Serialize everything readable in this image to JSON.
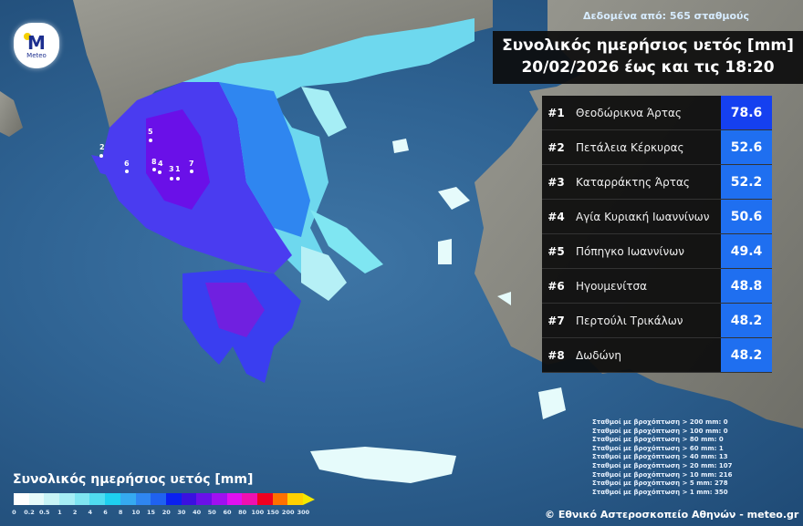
{
  "header": {
    "source_note": "Δεδομένα από: 565 σταθμούς",
    "title_line1": "Συνολικός ημερήσιος υετός [mm]",
    "title_line2": "20/02/2026 έως και τις 18:20"
  },
  "logo": {
    "text": "Meteo"
  },
  "ranking": [
    {
      "rank": "#1",
      "station": "Θεοδώρικνα Άρτας",
      "value": "78.6",
      "color": "#1540f0"
    },
    {
      "rank": "#2",
      "station": "Πετάλεια Κέρκυρας",
      "value": "52.6",
      "color": "#1f6ff0"
    },
    {
      "rank": "#3",
      "station": "Καταρράκτης Άρτας",
      "value": "52.2",
      "color": "#1f6ff0"
    },
    {
      "rank": "#4",
      "station": "Αγία Κυριακή Ιωαννίνων",
      "value": "50.6",
      "color": "#1f6ff0"
    },
    {
      "rank": "#5",
      "station": "Πόπηγκο Ιωαννίνων",
      "value": "49.4",
      "color": "#1f6ff0"
    },
    {
      "rank": "#6",
      "station": "Ηγουμενίτσα",
      "value": "48.8",
      "color": "#1f6ff0"
    },
    {
      "rank": "#7",
      "station": "Περτούλι Τρικάλων",
      "value": "48.2",
      "color": "#1f6ff0"
    },
    {
      "rank": "#8",
      "station": "Δωδώνη",
      "value": "48.2",
      "color": "#1f6ff0"
    }
  ],
  "map_markers": [
    "1",
    "2",
    "3",
    "4",
    "5",
    "6",
    "7",
    "8"
  ],
  "stats": [
    "Σταθμοί με βροχόπτωση > 200 mm: 0",
    "Σταθμοί με βροχόπτωση > 100 mm: 0",
    "Σταθμοί με βροχόπτωση > 80 mm: 0",
    "Σταθμοί με βροχόπτωση > 60 mm: 1",
    "Σταθμοί με βροχόπτωση > 40 mm: 13",
    "Σταθμοί με βροχόπτωση > 20 mm: 107",
    "Σταθμοί με βροχόπτωση > 10 mm: 216",
    "Σταθμοί με βροχόπτωση > 5 mm: 278",
    "Σταθμοί με βροχόπτωση > 1 mm: 350"
  ],
  "legend": {
    "title": "Συνολικός ημερήσιος υετός [mm]",
    "ticks": [
      "0",
      "0.2",
      "0.5",
      "1",
      "2",
      "4",
      "6",
      "8",
      "10",
      "15",
      "20",
      "30",
      "40",
      "50",
      "60",
      "80",
      "100",
      "150",
      "200",
      "300"
    ],
    "colors": [
      "#ffffff",
      "#e6fbfb",
      "#c8f4f6",
      "#a6eef5",
      "#7fe6f2",
      "#50dcf0",
      "#1ed0f0",
      "#35aaf0",
      "#2f86f0",
      "#1f62f0",
      "#0a20f0",
      "#3a10e0",
      "#6a10e8",
      "#a010f0",
      "#e010f0",
      "#f010b0",
      "#f00020",
      "#ff7000",
      "#ffd000"
    ]
  },
  "credit": "© Εθνικό Αστεροσκοπείο Αθηνών - meteo.gr"
}
